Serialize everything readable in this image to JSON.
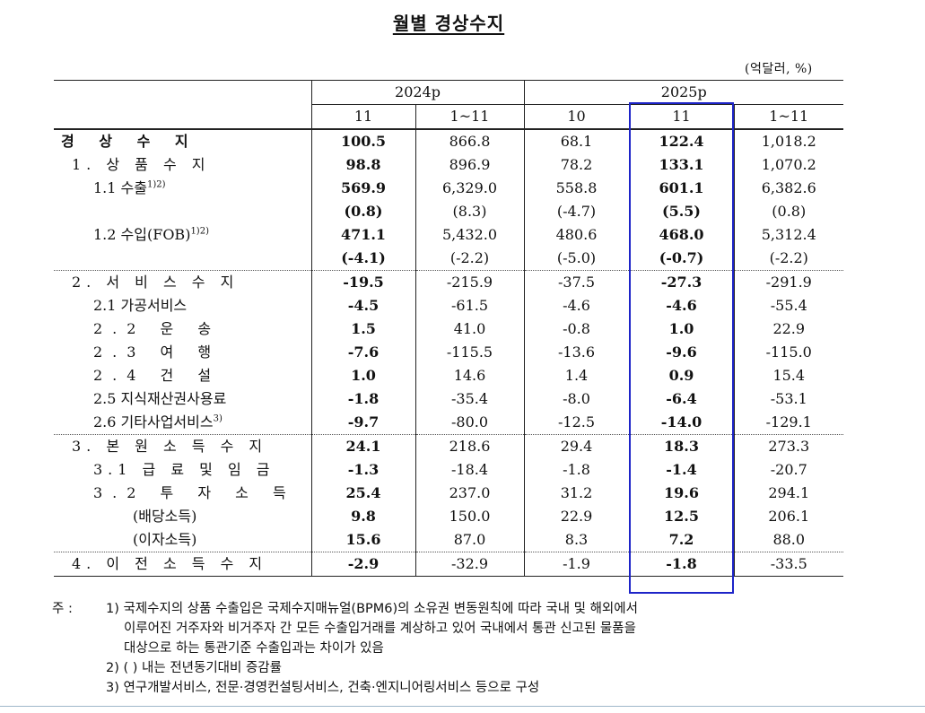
{
  "title": "월별 경상수지",
  "unit": "(억달러, %)",
  "header": {
    "year_2024": "2024p",
    "year_2025": "2025p",
    "cols": [
      "11",
      "1~11",
      "10",
      "11",
      "1~11"
    ]
  },
  "rows": [
    {
      "label": "경 상 수 지",
      "vals": [
        "100.5",
        "866.8",
        "68.1",
        "122.4",
        "1,018.2"
      ]
    },
    {
      "label": "1. 상 품 수 지",
      "vals": [
        "98.8",
        "896.9",
        "78.2",
        "133.1",
        "1,070.2"
      ]
    },
    {
      "label": "1.1 수출",
      "sup": "1)2)",
      "vals": [
        "569.9",
        "6,329.0",
        "558.8",
        "601.1",
        "6,382.6"
      ]
    },
    {
      "label": "",
      "vals": [
        "(0.8)",
        "(8.3)",
        "(-4.7)",
        "(5.5)",
        "(0.8)"
      ]
    },
    {
      "label": "1.2 수입(FOB)",
      "sup": "1)2)",
      "vals": [
        "471.1",
        "5,432.0",
        "480.6",
        "468.0",
        "5,312.4"
      ]
    },
    {
      "label": "",
      "vals": [
        "(-4.1)",
        "(-2.2)",
        "(-5.0)",
        "(-0.7)",
        "(-2.2)"
      ]
    },
    {
      "label": "2. 서 비 스 수 지",
      "vals": [
        "-19.5",
        "-215.9",
        "-37.5",
        "-27.3",
        "-291.9"
      ]
    },
    {
      "label": "2.1 가공서비스",
      "vals": [
        "-4.5",
        "-61.5",
        "-4.6",
        "-4.6",
        "-55.4"
      ]
    },
    {
      "label": "2.2 운 송",
      "vals": [
        "1.5",
        "41.0",
        "-0.8",
        "1.0",
        "22.9"
      ]
    },
    {
      "label": "2.3 여 행",
      "vals": [
        "-7.6",
        "-115.5",
        "-13.6",
        "-9.6",
        "-115.0"
      ]
    },
    {
      "label": "2.4 건 설",
      "vals": [
        "1.0",
        "14.6",
        "1.4",
        "0.9",
        "15.4"
      ]
    },
    {
      "label": "2.5 지식재산권사용료",
      "vals": [
        "-1.8",
        "-35.4",
        "-8.0",
        "-6.4",
        "-53.1"
      ]
    },
    {
      "label": "2.6 기타사업서비스",
      "sup": "3)",
      "vals": [
        "-9.7",
        "-80.0",
        "-12.5",
        "-14.0",
        "-129.1"
      ]
    },
    {
      "label": "3. 본 원 소 득 수 지",
      "vals": [
        "24.1",
        "218.6",
        "29.4",
        "18.3",
        "273.3"
      ]
    },
    {
      "label": "3.1 급 료 및 임 금",
      "vals": [
        "-1.3",
        "-18.4",
        "-1.8",
        "-1.4",
        "-20.7"
      ]
    },
    {
      "label": "3.2 투 자 소 득",
      "vals": [
        "25.4",
        "237.0",
        "31.2",
        "19.6",
        "294.1"
      ]
    },
    {
      "label": "(배당소득)",
      "vals": [
        "9.8",
        "150.0",
        "22.9",
        "12.5",
        "206.1"
      ]
    },
    {
      "label": "(이자소득)",
      "vals": [
        "15.6",
        "87.0",
        "8.3",
        "7.2",
        "88.0"
      ]
    },
    {
      "label": "4. 이 전 소 득 수 지",
      "vals": [
        "-2.9",
        "-32.9",
        "-1.9",
        "-1.8",
        "-33.5"
      ]
    }
  ],
  "notes": {
    "lead": "주 :",
    "n1_a": "1) 국제수지의 상품 수출입은 국제수지매뉴얼(BPM6)의 소유권 변동원칙에 따라 국내 및 해외에서",
    "n1_b": "이루어진 거주자와 비거주자 간 모든 수출입거래를 계상하고 있어 국내에서 통관 신고된 물품을",
    "n1_c": "대상으로 하는 통관기준 수출입과는 차이가 있음",
    "n2": "2) ( ) 내는 전년동기대비 증감률",
    "n3": "3) 연구개발서비스, 전문·경영컨설팅서비스, 건축·엔지니어링서비스 등으로 구성"
  }
}
